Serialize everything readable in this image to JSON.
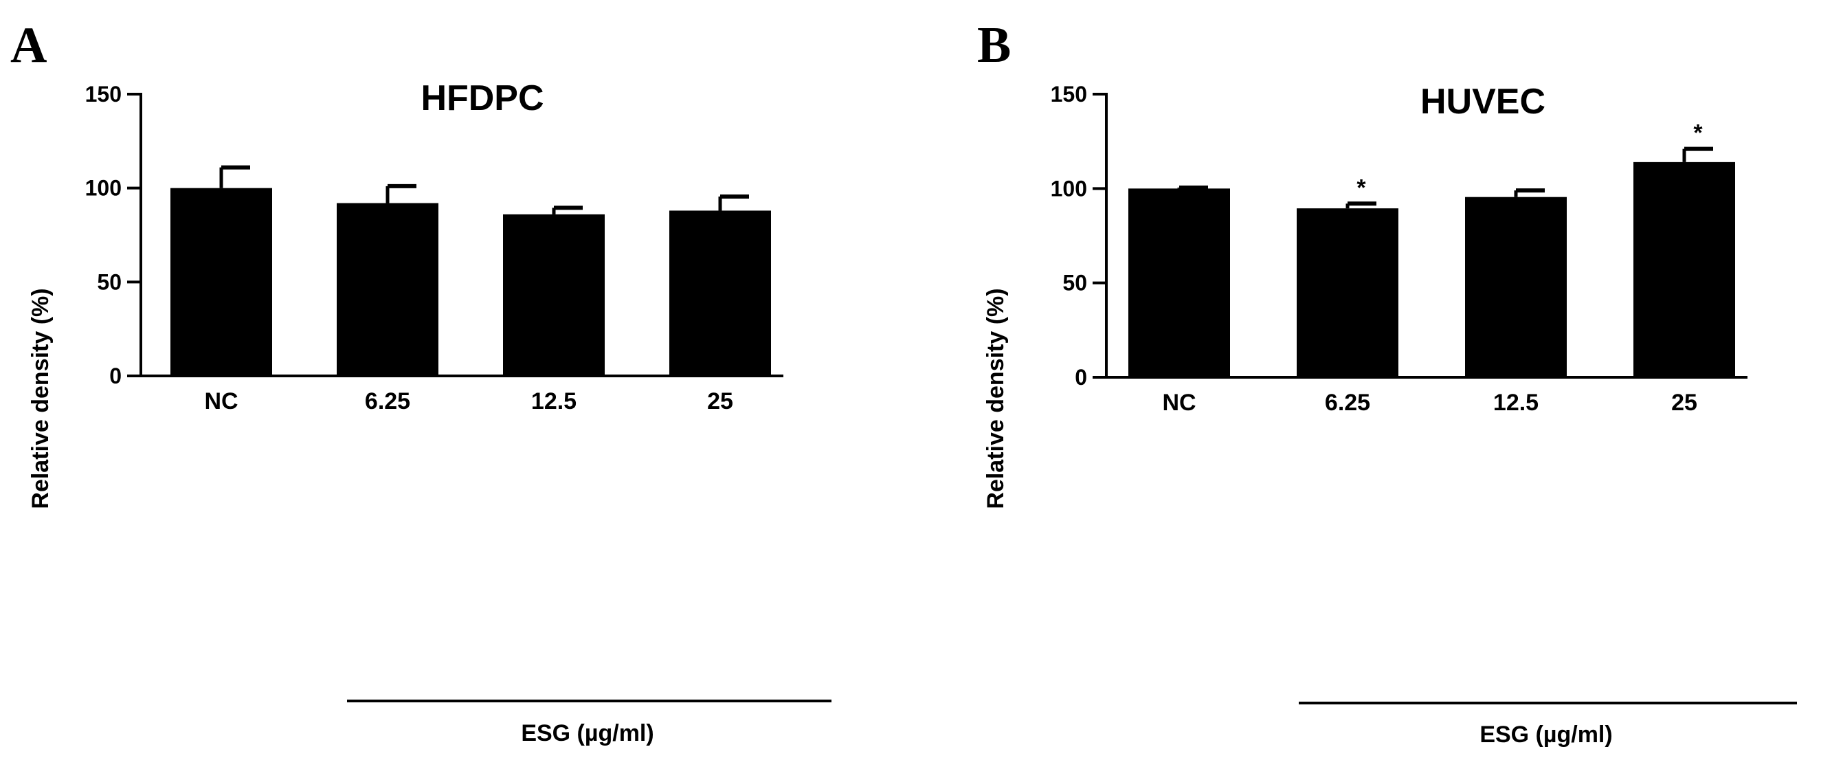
{
  "chart_data": [
    {
      "panel": "A",
      "type": "bar",
      "title": "HFDPC",
      "xlabel": "",
      "ylabel": "Relative density (%)",
      "ylim": [
        0,
        150
      ],
      "yticks": [
        0,
        50,
        100,
        150
      ],
      "categories": [
        "NC",
        "6.25",
        "12.5",
        "25"
      ],
      "values": [
        100,
        92,
        86,
        88
      ],
      "errors": [
        11,
        9,
        3.5,
        7.5
      ],
      "significance": [
        "",
        "",
        "",
        ""
      ],
      "group_label": "ESG (µg/ml)",
      "bar_color": "#000000"
    },
    {
      "panel": "B",
      "type": "bar",
      "title": "HUVEC",
      "xlabel": "",
      "ylabel": "Relative density (%)",
      "ylim": [
        0,
        150
      ],
      "yticks": [
        0,
        50,
        100,
        150
      ],
      "categories": [
        "NC",
        "6.25",
        "12.5",
        "25"
      ],
      "values": [
        100,
        89.5,
        95.5,
        114
      ],
      "errors": [
        0.5,
        2.5,
        3.5,
        7
      ],
      "significance": [
        "",
        "*",
        "",
        "*"
      ],
      "group_label": "ESG (µg/ml)",
      "bar_color": "#000000"
    }
  ]
}
